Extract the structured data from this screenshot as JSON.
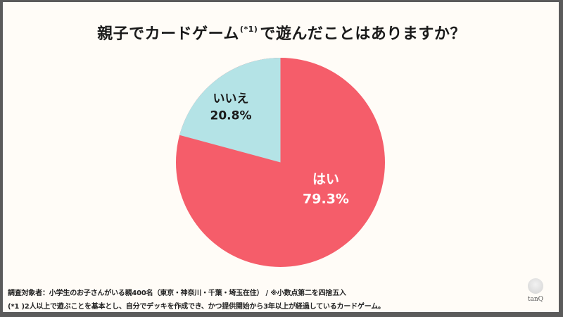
{
  "title": {
    "main": "親子でカードゲーム",
    "superscript": "(*1)",
    "rest": "で遊んだことはありますか？"
  },
  "chart_data": {
    "type": "pie",
    "title": "親子でカードゲーム(*1)で遊んだことはありますか？",
    "categories": [
      "はい",
      "いいえ"
    ],
    "values": [
      79.3,
      20.8
    ],
    "colors": [
      "#f55d6a",
      "#b4e3e6"
    ],
    "labels": [
      {
        "name": "はい",
        "value_label": "79.3%"
      },
      {
        "name": "いいえ",
        "value_label": "20.8%"
      }
    ],
    "start_angle": "12 o'clock",
    "legend": "none (labels inside slices)"
  },
  "slices": {
    "yes": {
      "name": "はい",
      "value": "79.3%",
      "color": "#f55d6a"
    },
    "no": {
      "name": "いいえ",
      "value": "20.8%",
      "color": "#b4e3e6"
    }
  },
  "footnotes": {
    "line1": "調査対象者：小学生のお子さんがいる親400名（東京・神奈川・千葉・埼玉在住） / ※小数点第二を四捨五入",
    "line2": "(*1 )2人以上で遊ぶことを基本とし、自分でデッキを作成でき、かつ提供開始から3年以上が経過しているカードゲーム。"
  },
  "logo": {
    "text": "tanQ"
  }
}
